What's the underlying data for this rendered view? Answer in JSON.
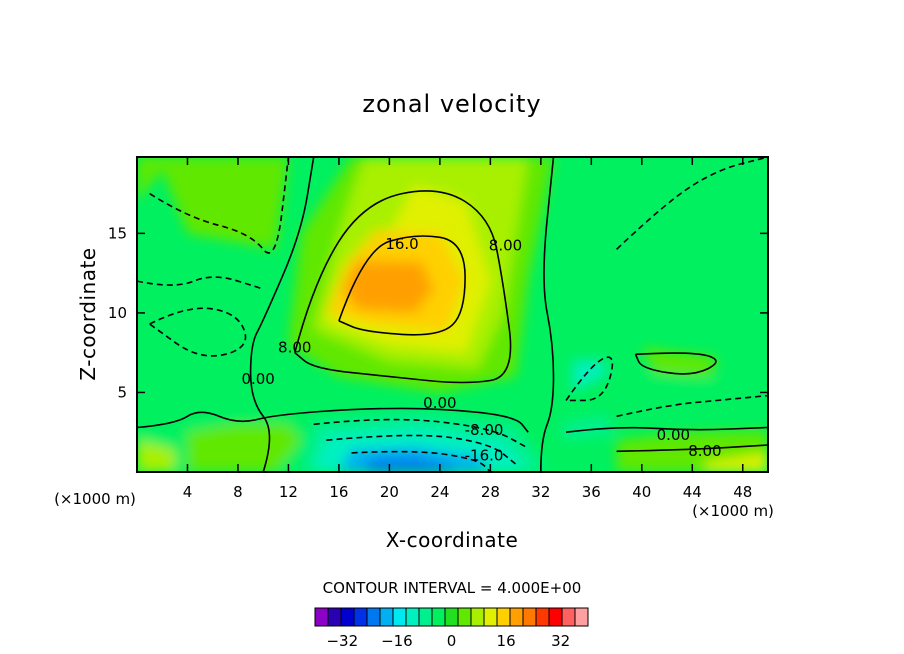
{
  "chart_data": {
    "type": "heatmap",
    "title": "zonal velocity",
    "xlabel": "X-coordinate",
    "ylabel": "Z-coordinate",
    "x_unit_left": "(×1000 m)",
    "x_unit_right": "(×1000 m)",
    "xlim": [
      0,
      50
    ],
    "ylim": [
      0,
      19.8
    ],
    "x_ticks": [
      4,
      8,
      12,
      16,
      20,
      24,
      28,
      32,
      36,
      40,
      44,
      48
    ],
    "y_ticks": [
      5,
      10,
      15
    ],
    "contour_interval_text": "CONTOUR INTERVAL = 4.000E+00",
    "contour_labels": [
      {
        "text": "16.0",
        "x": 21,
        "z": 14.3
      },
      {
        "text": "8.00",
        "x": 29.2,
        "z": 14.2
      },
      {
        "text": "8.00",
        "x": 12.5,
        "z": 7.8
      },
      {
        "text": "0.00",
        "x": 9.6,
        "z": 5.8
      },
      {
        "text": "0.00",
        "x": 24,
        "z": 4.3
      },
      {
        "text": "-8.00",
        "x": 27.5,
        "z": 2.6
      },
      {
        "text": "-16.0",
        "x": 27.5,
        "z": 1.0
      },
      {
        "text": "0.00",
        "x": 42.5,
        "z": 2.3
      },
      {
        "text": "8.00",
        "x": 45,
        "z": 1.3
      }
    ],
    "features": [
      {
        "kind": "max",
        "x": 19.5,
        "z": 11.6,
        "value": 22
      },
      {
        "kind": "min",
        "x": 19.5,
        "z": 0.5,
        "value": -22
      },
      {
        "kind": "max",
        "x": 43.5,
        "z": 6.8,
        "value": 6
      },
      {
        "kind": "min",
        "x": 35.5,
        "z": 6.0,
        "value": -9
      },
      {
        "kind": "max",
        "x": 48.5,
        "z": 0.5,
        "value": 14
      }
    ],
    "colorbar": {
      "levels": [
        -40,
        -36,
        -32,
        -28,
        -24,
        -20,
        -16,
        -12,
        -8,
        -4,
        0,
        4,
        8,
        12,
        16,
        20,
        24,
        28,
        32,
        36,
        40
      ],
      "tick_values": [
        -32,
        -16,
        0,
        16,
        32
      ],
      "tick_labels": [
        "−32",
        "−16",
        "0",
        "16",
        "32"
      ],
      "colors": [
        "#8c00c8",
        "#2a00b4",
        "#0000d0",
        "#0030e8",
        "#0078f0",
        "#00b0f0",
        "#00e8f0",
        "#00f0c0",
        "#00f090",
        "#00f060",
        "#20e020",
        "#60e800",
        "#a8f000",
        "#e0f000",
        "#ffd000",
        "#ffa000",
        "#ff7800",
        "#ff3800",
        "#ff0000",
        "#ff6060",
        "#ffa0a0"
      ]
    }
  }
}
